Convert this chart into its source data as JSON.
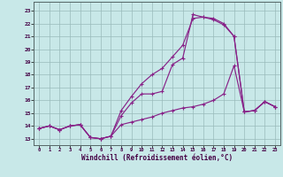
{
  "background_color": "#c8e8e8",
  "grid_color": "#99bbbb",
  "line_color": "#882288",
  "marker": "+",
  "xlabel": "Windchill (Refroidissement éolien,°C)",
  "xlabel_fontsize": 5.5,
  "xtick_values": [
    0,
    1,
    2,
    3,
    4,
    5,
    6,
    7,
    8,
    9,
    10,
    11,
    12,
    13,
    14,
    15,
    16,
    17,
    18,
    19,
    20,
    21,
    22,
    23
  ],
  "ytick_values": [
    13,
    14,
    15,
    16,
    17,
    18,
    19,
    20,
    21,
    22,
    23
  ],
  "xlim": [
    -0.5,
    23.5
  ],
  "ylim": [
    12.5,
    23.7
  ],
  "line1_x": [
    0,
    1,
    2,
    3,
    4,
    5,
    6,
    7,
    8,
    9,
    10,
    11,
    12,
    13,
    14,
    15,
    16,
    17,
    18,
    19,
    20,
    21,
    22,
    23
  ],
  "line1_y": [
    13.8,
    14.0,
    13.7,
    14.0,
    14.1,
    13.1,
    13.0,
    13.2,
    14.8,
    15.8,
    16.5,
    16.5,
    16.7,
    18.8,
    19.3,
    22.7,
    22.5,
    22.4,
    22.0,
    21.0,
    15.1,
    15.2,
    15.9,
    15.5
  ],
  "line2_x": [
    0,
    1,
    2,
    3,
    4,
    5,
    6,
    7,
    8,
    9,
    10,
    11,
    12,
    13,
    14,
    15,
    16,
    17,
    18,
    19,
    20,
    21,
    22,
    23
  ],
  "line2_y": [
    13.8,
    14.0,
    13.7,
    14.0,
    14.1,
    13.1,
    13.0,
    13.2,
    15.2,
    16.3,
    17.3,
    18.0,
    18.5,
    19.4,
    20.3,
    22.4,
    22.5,
    22.3,
    21.9,
    21.0,
    15.1,
    15.2,
    15.9,
    15.5
  ],
  "line3_x": [
    0,
    1,
    2,
    3,
    4,
    5,
    6,
    7,
    8,
    9,
    10,
    11,
    12,
    13,
    14,
    15,
    16,
    17,
    18,
    19,
    20,
    21,
    22,
    23
  ],
  "line3_y": [
    13.8,
    14.0,
    13.7,
    14.0,
    14.1,
    13.1,
    13.0,
    13.2,
    14.1,
    14.3,
    14.5,
    14.7,
    15.0,
    15.2,
    15.4,
    15.5,
    15.7,
    16.0,
    16.5,
    18.7,
    15.1,
    15.2,
    15.9,
    15.5
  ]
}
